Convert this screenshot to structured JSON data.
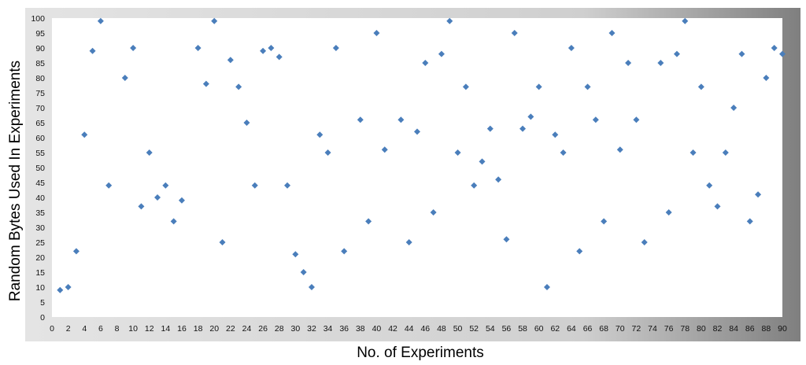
{
  "chart_data": {
    "type": "scatter",
    "title": "",
    "xlabel": "No. of Experiments",
    "ylabel": "Random Bytes Used In Experiments",
    "xlim": [
      0,
      90
    ],
    "ylim": [
      0,
      100
    ],
    "x_ticks": [
      0,
      2,
      4,
      6,
      8,
      10,
      12,
      14,
      16,
      18,
      20,
      22,
      24,
      26,
      28,
      30,
      32,
      34,
      36,
      38,
      40,
      42,
      44,
      46,
      48,
      50,
      52,
      54,
      56,
      58,
      60,
      62,
      64,
      66,
      68,
      70,
      72,
      74,
      76,
      78,
      80,
      82,
      84,
      86,
      88,
      90
    ],
    "y_ticks": [
      0,
      5,
      10,
      15,
      20,
      25,
      30,
      35,
      40,
      45,
      50,
      55,
      60,
      65,
      70,
      75,
      80,
      85,
      90,
      95,
      100
    ],
    "grid": false,
    "marker": "diamond",
    "marker_color": "#4a7ebb",
    "x": [
      1,
      2,
      3,
      4,
      5,
      6,
      7,
      9,
      10,
      11,
      12,
      13,
      14,
      15,
      16,
      18,
      19,
      20,
      21,
      22,
      23,
      24,
      25,
      26,
      27,
      28,
      29,
      30,
      31,
      32,
      33,
      34,
      35,
      36,
      38,
      39,
      40,
      41,
      43,
      44,
      45,
      46,
      47,
      48,
      49,
      50,
      51,
      52,
      53,
      54,
      55,
      56,
      57,
      58,
      59,
      60,
      61,
      62,
      63,
      64,
      65,
      66,
      67,
      68,
      69,
      70,
      71,
      72,
      73,
      75,
      76,
      77,
      78,
      79,
      80,
      81,
      82,
      83,
      84,
      85,
      86,
      87,
      88,
      89,
      90
    ],
    "y": [
      9,
      10,
      22,
      61,
      89,
      99,
      44,
      80,
      90,
      37,
      55,
      40,
      44,
      32,
      39,
      90,
      78,
      99,
      25,
      86,
      77,
      65,
      44,
      89,
      90,
      87,
      44,
      21,
      15,
      10,
      61,
      55,
      90,
      22,
      66,
      32,
      95,
      56,
      66,
      25,
      62,
      85,
      35,
      88,
      99,
      55,
      77,
      44,
      52,
      63,
      46,
      26,
      95,
      63,
      67,
      77,
      10,
      61,
      55,
      90,
      22,
      77,
      66,
      32,
      95,
      56,
      85,
      66,
      25,
      85,
      35,
      88,
      99,
      55,
      77,
      44,
      37,
      55,
      70,
      88,
      32,
      41,
      80,
      90,
      88
    ]
  }
}
